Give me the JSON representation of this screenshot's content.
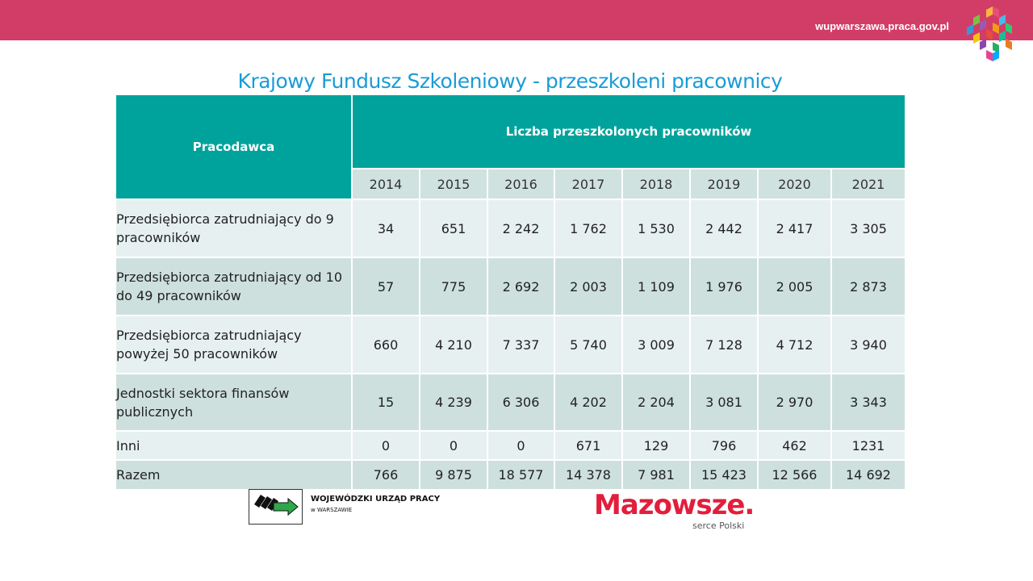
{
  "header": {
    "site_url": "wupwarszawa.praca.gov.pl",
    "bar_color": "#d13d67",
    "logo_icon": "colorful-cubes-logo"
  },
  "title": "Krajowy Fundusz Szkoleniowy - przeszkoleni pracownicy",
  "table": {
    "col_header": "Pracodawca",
    "group_header": "Liczba przeszkolonych pracowników",
    "years": [
      "2014",
      "2015",
      "2016",
      "2017",
      "2018",
      "2019",
      "2020",
      "2021"
    ],
    "rows": [
      {
        "name": "Przedsiębiorca zatrudniający do 9 pracowników",
        "values": [
          "34",
          "651",
          "2 242",
          "1 762",
          "1 530",
          "2 442",
          "2 417",
          "3 305"
        ]
      },
      {
        "name": "Przedsiębiorca zatrudniający od 10 do 49 pracowników",
        "values": [
          "57",
          "775",
          "2 692",
          "2 003",
          "1 109",
          "1 976",
          "2 005",
          "2 873"
        ]
      },
      {
        "name": "Przedsiębiorca zatrudniający powyżej 50 pracowników",
        "values": [
          "660",
          "4 210",
          "7 337",
          "5 740",
          "3 009",
          "7 128",
          "4 712",
          "3 940"
        ]
      },
      {
        "name": "Jednostki sektora finansów publicznych",
        "values": [
          "15",
          "4 239",
          "6 306",
          "4 202",
          "2 204",
          "3 081",
          "2 970",
          "3 343"
        ]
      },
      {
        "name": "Inni",
        "values": [
          "0",
          "0",
          "0",
          "671",
          "129",
          "796",
          "462",
          "1231"
        ]
      },
      {
        "name": "Razem",
        "values": [
          "766",
          "9 875",
          "18 577",
          "14 378",
          "7 981",
          "15 423",
          "12 566",
          "14 692"
        ]
      }
    ]
  },
  "footer": {
    "wup_name": "WOJEWÓDZKI URZĄD PRACY",
    "wup_sub": "w WARSZAWIE",
    "wup_icon": "arrow-logo",
    "maz_word": "Mazowsze.",
    "maz_sub": "serce Polski"
  }
}
